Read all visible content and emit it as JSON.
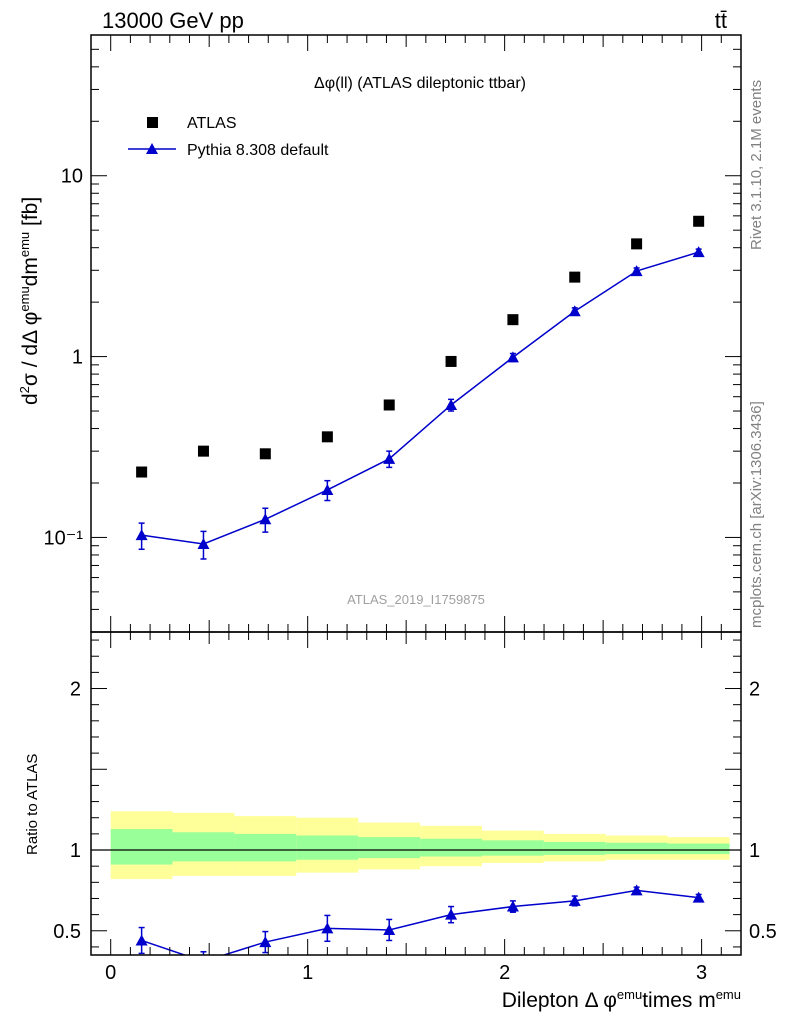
{
  "header": {
    "left": "13000 GeV pp",
    "right": "tt̄"
  },
  "side_text": {
    "top": "Rivet 3.1.10,  2.1M events",
    "bottom": "mcplots.cern.ch [arXiv:1306.3436]"
  },
  "chart_data": [
    {
      "type": "scatter",
      "title": "Δφ(ll) (ATLAS dileptonic ttbar)",
      "ylabel": "d²σ / dΔ φ^emu dm^emu [fb]",
      "yscale": "log",
      "ylim": [
        0.03,
        60
      ],
      "xlim": [
        -0.1,
        3.2
      ],
      "y_ticks": [
        {
          "value": 0.1,
          "label": "10⁻¹"
        },
        {
          "value": 1,
          "label": "1"
        },
        {
          "value": 10,
          "label": "10"
        }
      ],
      "watermark": "ATLAS_2019_I1759875",
      "legend_position": "top-left",
      "x": [
        0.157,
        0.471,
        0.785,
        1.1,
        1.414,
        1.728,
        2.042,
        2.356,
        2.67,
        2.985
      ],
      "series": [
        {
          "name": "ATLAS",
          "marker": "square",
          "color": "#000000",
          "values": [
            0.23,
            0.3,
            0.29,
            0.36,
            0.54,
            0.94,
            1.6,
            2.75,
            4.2,
            5.6
          ]
        },
        {
          "name": "Pythia 8.308 default",
          "marker": "triangle",
          "line": true,
          "color": "#0000cc",
          "values": [
            0.103,
            0.092,
            0.126,
            0.183,
            0.272,
            0.54,
            0.99,
            1.78,
            2.97,
            3.78
          ],
          "err_low": [
            0.017,
            0.016,
            0.019,
            0.023,
            0.028,
            0.04,
            0.05,
            0.08,
            0.12,
            0.15
          ],
          "err_high": [
            0.017,
            0.016,
            0.019,
            0.023,
            0.028,
            0.04,
            0.05,
            0.08,
            0.12,
            0.15
          ]
        }
      ]
    },
    {
      "type": "scatter",
      "ylabel": "Ratio to ATLAS",
      "xlabel": "Dilepton Δ φ^emu times m^emu",
      "ylim": [
        0.35,
        2.35
      ],
      "xlim": [
        -0.1,
        3.2
      ],
      "y_ticks": [
        0.5,
        1,
        2
      ],
      "x_ticks": [
        0,
        1,
        2,
        3
      ],
      "reference_line": 1,
      "bands": {
        "edges": [
          0,
          0.314,
          0.628,
          0.942,
          1.257,
          1.571,
          1.885,
          2.199,
          2.513,
          2.827,
          3.142
        ],
        "stat_low": [
          0.91,
          0.93,
          0.93,
          0.94,
          0.95,
          0.96,
          0.965,
          0.97,
          0.975,
          0.975
        ],
        "stat_high": [
          1.13,
          1.11,
          1.1,
          1.09,
          1.08,
          1.07,
          1.06,
          1.05,
          1.045,
          1.04
        ],
        "total_low": [
          0.82,
          0.84,
          0.84,
          0.86,
          0.88,
          0.9,
          0.92,
          0.93,
          0.94,
          0.94
        ],
        "total_high": [
          1.24,
          1.23,
          1.21,
          1.2,
          1.17,
          1.15,
          1.12,
          1.1,
          1.09,
          1.08
        ],
        "stat_color": "#99ff99",
        "total_color": "#ffff99"
      },
      "x": [
        0.157,
        0.471,
        0.785,
        1.1,
        1.414,
        1.728,
        2.042,
        2.356,
        2.67,
        2.985
      ],
      "series": [
        {
          "name": "Pythia 8.308 default",
          "marker": "triangle",
          "color": "#0000cc",
          "values": [
            0.44,
            0.31,
            0.43,
            0.515,
            0.505,
            0.6,
            0.65,
            0.685,
            0.75,
            0.705
          ],
          "err_low": [
            0.08,
            0.06,
            0.065,
            0.08,
            0.065,
            0.05,
            0.035,
            0.03,
            0.02,
            0.02
          ],
          "err_high": [
            0.08,
            0.06,
            0.065,
            0.08,
            0.065,
            0.05,
            0.035,
            0.03,
            0.02,
            0.02
          ]
        }
      ]
    }
  ]
}
